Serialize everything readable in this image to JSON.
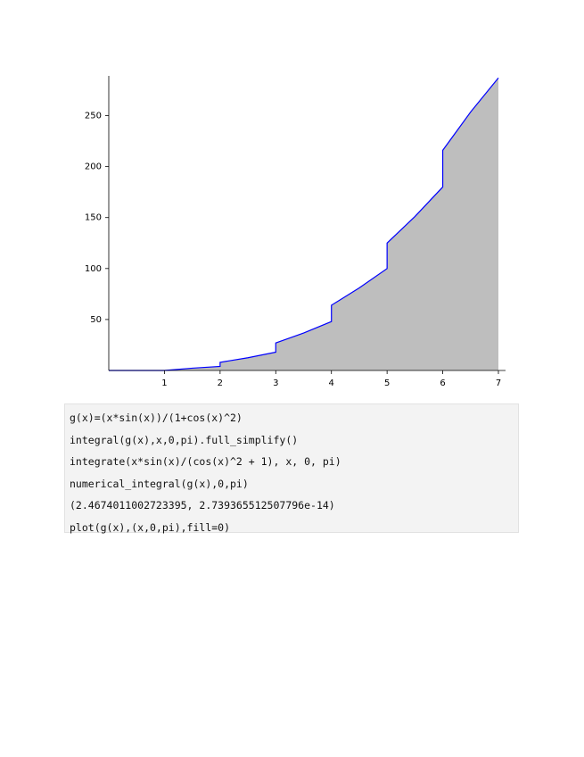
{
  "chart_data": {
    "type": "area",
    "x": [
      0,
      1,
      1.5,
      2,
      2,
      2.5,
      3,
      3,
      3.5,
      4,
      4,
      4.5,
      5,
      5,
      5.5,
      6,
      6,
      6.5,
      7
    ],
    "values": [
      0,
      0,
      2.25,
      4,
      8,
      12.5,
      18,
      27,
      36.75,
      48,
      64,
      81,
      100,
      125,
      151,
      180,
      216,
      253.5,
      287
    ],
    "color": "#0000ff",
    "fill_color": "#bebebe",
    "xlim": [
      0,
      7
    ],
    "xticks": [
      1,
      2,
      3,
      4,
      5,
      6,
      7
    ],
    "ylim": [
      0,
      289
    ],
    "yticks": [
      50,
      100,
      150,
      200,
      250
    ]
  },
  "code_lines": [
    "g(x)=(x*sin(x))/(1+cos(x)^2)",
    "integral(g(x),x,0,pi).full_simplify()",
    "integrate(x*sin(x)/(cos(x)^2 + 1), x, 0, pi)",
    "numerical_integral(g(x),0,pi)",
    "(2.4674011002723395, 2.739365512507796e-14)",
    "plot(g(x),(x,0,pi),fill=0)"
  ]
}
